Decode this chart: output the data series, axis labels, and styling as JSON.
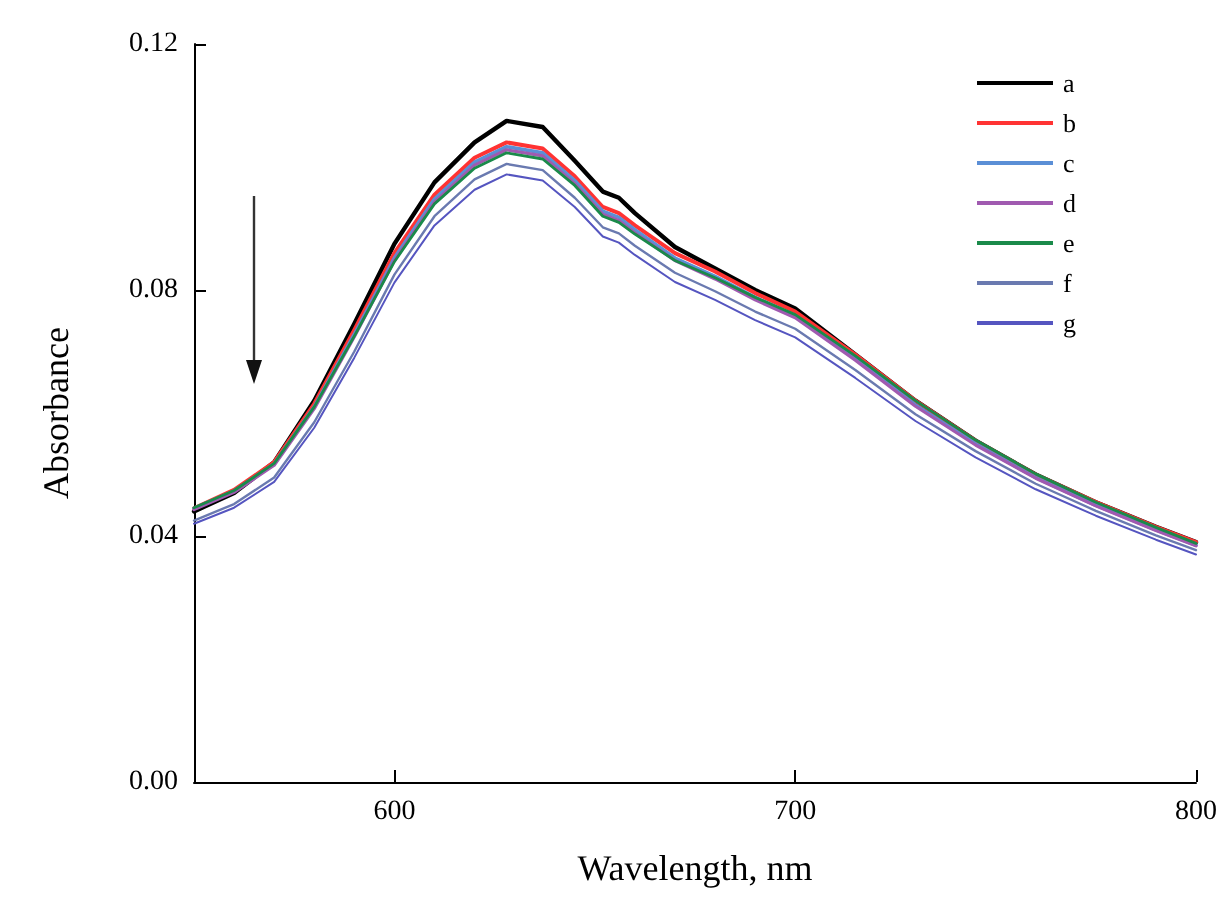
{
  "chart_data": {
    "type": "line",
    "xlabel": "Wavelength, nm",
    "ylabel": "Absorbance",
    "x": [
      550,
      560,
      570,
      580,
      590,
      600,
      610,
      620,
      628,
      637,
      645,
      652,
      656,
      660,
      670,
      680,
      690,
      700,
      715,
      730,
      745,
      760,
      775,
      790,
      800
    ],
    "series": [
      {
        "name": "a",
        "color": "#000000",
        "values": [
          0.044,
          0.047,
          0.052,
          0.062,
          0.0745,
          0.0875,
          0.0975,
          0.104,
          0.1075,
          0.1065,
          0.101,
          0.096,
          0.095,
          0.0925,
          0.087,
          0.0835,
          0.08,
          0.077,
          0.0695,
          0.062,
          0.0555,
          0.05,
          0.0455,
          0.0415,
          0.039
        ]
      },
      {
        "name": "b",
        "color": "#ff3333",
        "values": [
          0.0445,
          0.0475,
          0.052,
          0.0615,
          0.0735,
          0.086,
          0.0955,
          0.1015,
          0.104,
          0.103,
          0.0985,
          0.0935,
          0.0925,
          0.0905,
          0.086,
          0.083,
          0.0795,
          0.0765,
          0.0695,
          0.062,
          0.0555,
          0.05,
          0.0455,
          0.0415,
          0.039
        ]
      },
      {
        "name": "c",
        "color": "#5b8fd6",
        "values": [
          0.0445,
          0.0473,
          0.0517,
          0.061,
          0.0728,
          0.0852,
          0.0948,
          0.1008,
          0.1033,
          0.1023,
          0.0978,
          0.0928,
          0.0918,
          0.0898,
          0.0852,
          0.0822,
          0.0788,
          0.0758,
          0.0688,
          0.0613,
          0.055,
          0.0495,
          0.045,
          0.041,
          0.0385
        ]
      },
      {
        "name": "d",
        "color": "#a05ab0",
        "values": [
          0.0443,
          0.0471,
          0.0515,
          0.0607,
          0.0724,
          0.0848,
          0.0943,
          0.1003,
          0.1028,
          0.1018,
          0.0973,
          0.0923,
          0.0913,
          0.0893,
          0.0848,
          0.0818,
          0.0784,
          0.0755,
          0.0686,
          0.0611,
          0.0548,
          0.0494,
          0.0449,
          0.0409,
          0.0384
        ]
      },
      {
        "name": "e",
        "color": "#1a8a4a",
        "values": [
          0.0446,
          0.0474,
          0.0518,
          0.061,
          0.0725,
          0.0846,
          0.094,
          0.0998,
          0.1023,
          0.1013,
          0.097,
          0.092,
          0.091,
          0.0891,
          0.0848,
          0.082,
          0.0788,
          0.076,
          0.0693,
          0.062,
          0.0556,
          0.0501,
          0.0455,
          0.0414,
          0.0388
        ]
      },
      {
        "name": "f",
        "color": "#6a7ab0",
        "values": [
          0.0425,
          0.0452,
          0.0495,
          0.0585,
          0.07,
          0.0825,
          0.092,
          0.098,
          0.1005,
          0.0995,
          0.095,
          0.0902,
          0.0892,
          0.0872,
          0.0828,
          0.0798,
          0.0765,
          0.0737,
          0.067,
          0.0598,
          0.0538,
          0.0485,
          0.0441,
          0.0401,
          0.0377
        ]
      },
      {
        "name": "g",
        "color": "#5555c0",
        "values": [
          0.042,
          0.0446,
          0.0488,
          0.0576,
          0.069,
          0.0812,
          0.0905,
          0.0963,
          0.0988,
          0.0978,
          0.0935,
          0.0887,
          0.0877,
          0.0857,
          0.0813,
          0.0784,
          0.0751,
          0.0723,
          0.0657,
          0.0587,
          0.0528,
          0.0476,
          0.0433,
          0.0394,
          0.037
        ]
      }
    ],
    "xlim": [
      550,
      800
    ],
    "xticks": [
      600,
      700,
      800
    ],
    "ylim": [
      0,
      0.12
    ],
    "yticks": [
      {
        "value": 0,
        "label": "0.00"
      },
      0.04,
      0.08,
      0.12
    ],
    "grid": false,
    "legend": "top right",
    "marker": "none",
    "line_style": "solid"
  }
}
